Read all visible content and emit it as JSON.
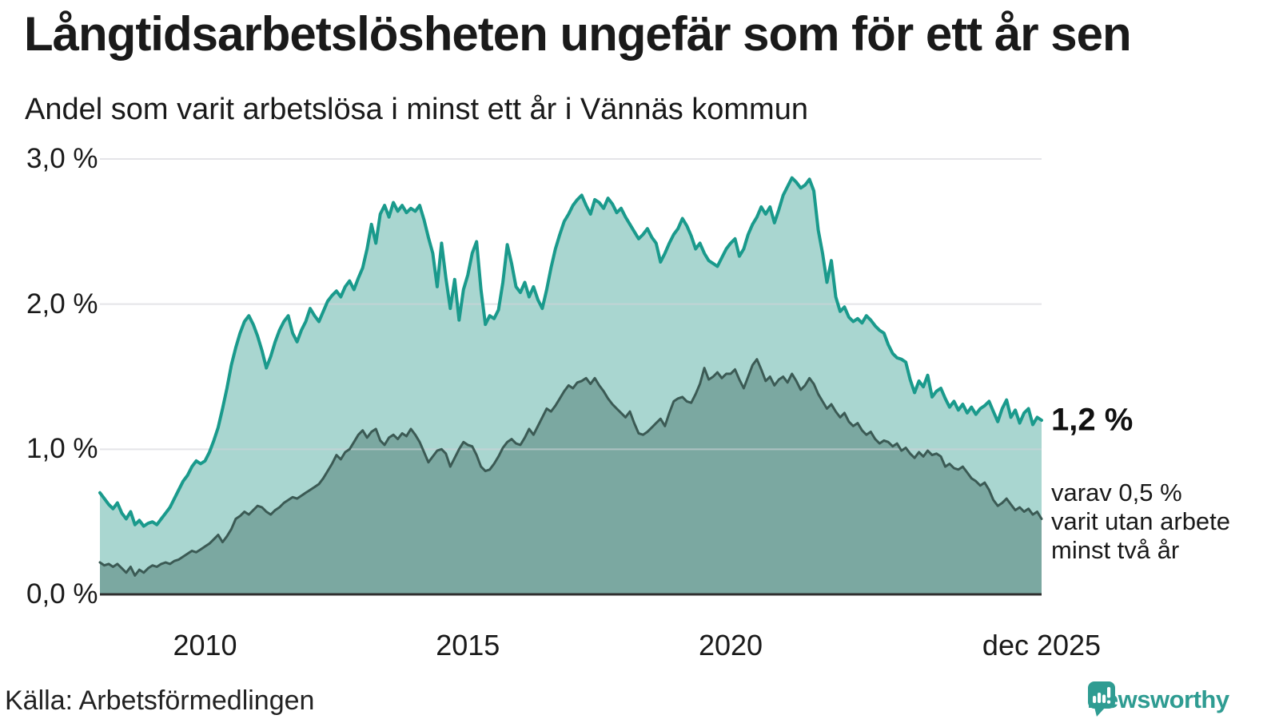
{
  "header": {
    "title": "Långtidsarbetslösheten ungefär som för ett år sen",
    "subtitle": "Andel som varit arbetslösa i minst ett år i Vännäs kommun"
  },
  "chart_data": {
    "type": "area",
    "title": "Långtidsarbetslösheten ungefär som för ett år sen",
    "subtitle": "Andel som varit arbetslösa i minst ett år i Vännäs kommun",
    "x_unit": "month",
    "x_start": "2008-01",
    "x_end": "2025-12",
    "ylim": [
      0,
      3.0
    ],
    "grid": true,
    "legend_position": "none",
    "y_ticks": [
      {
        "value": 3.0,
        "label": "3,0 %"
      },
      {
        "value": 2.0,
        "label": "2,0 %"
      },
      {
        "value": 1.0,
        "label": "1,0 %"
      },
      {
        "value": 0.0,
        "label": "0,0 %"
      }
    ],
    "x_ticks": [
      {
        "month_index": 24,
        "label": "2010"
      },
      {
        "month_index": 84,
        "label": "2015"
      },
      {
        "month_index": 144,
        "label": "2020"
      },
      {
        "month_index": 215,
        "label": "dec 2025"
      }
    ],
    "series": [
      {
        "name": "Arbetslösa minst ett år",
        "end_value_label": "1,2 %",
        "values": [
          0.7,
          0.66,
          0.62,
          0.59,
          0.63,
          0.56,
          0.52,
          0.57,
          0.48,
          0.51,
          0.47,
          0.49,
          0.5,
          0.48,
          0.52,
          0.56,
          0.6,
          0.66,
          0.72,
          0.78,
          0.82,
          0.88,
          0.92,
          0.9,
          0.92,
          0.98,
          1.06,
          1.15,
          1.28,
          1.42,
          1.58,
          1.7,
          1.8,
          1.88,
          1.92,
          1.86,
          1.78,
          1.68,
          1.56,
          1.64,
          1.74,
          1.82,
          1.88,
          1.92,
          1.8,
          1.74,
          1.82,
          1.88,
          1.97,
          1.92,
          1.88,
          1.95,
          2.02,
          2.06,
          2.09,
          2.05,
          2.12,
          2.16,
          2.1,
          2.18,
          2.25,
          2.38,
          2.55,
          2.42,
          2.62,
          2.68,
          2.6,
          2.7,
          2.64,
          2.68,
          2.63,
          2.66,
          2.64,
          2.68,
          2.58,
          2.46,
          2.35,
          2.12,
          2.42,
          2.18,
          1.97,
          2.17,
          1.89,
          2.1,
          2.2,
          2.35,
          2.43,
          2.1,
          1.86,
          1.92,
          1.9,
          1.96,
          2.15,
          2.41,
          2.28,
          2.12,
          2.08,
          2.15,
          2.05,
          2.12,
          2.03,
          1.97,
          2.1,
          2.25,
          2.38,
          2.48,
          2.57,
          2.62,
          2.68,
          2.72,
          2.75,
          2.68,
          2.62,
          2.72,
          2.7,
          2.66,
          2.73,
          2.69,
          2.63,
          2.66,
          2.6,
          2.55,
          2.5,
          2.45,
          2.48,
          2.52,
          2.46,
          2.42,
          2.29,
          2.35,
          2.42,
          2.48,
          2.52,
          2.59,
          2.54,
          2.47,
          2.38,
          2.42,
          2.35,
          2.3,
          2.28,
          2.26,
          2.32,
          2.38,
          2.42,
          2.45,
          2.33,
          2.38,
          2.48,
          2.55,
          2.6,
          2.67,
          2.62,
          2.67,
          2.56,
          2.65,
          2.75,
          2.81,
          2.87,
          2.84,
          2.8,
          2.82,
          2.86,
          2.78,
          2.51,
          2.35,
          2.15,
          2.3,
          2.05,
          1.95,
          1.98,
          1.91,
          1.88,
          1.9,
          1.87,
          1.92,
          1.89,
          1.85,
          1.82,
          1.8,
          1.72,
          1.66,
          1.63,
          1.62,
          1.6,
          1.48,
          1.39,
          1.47,
          1.43,
          1.51,
          1.36,
          1.4,
          1.42,
          1.35,
          1.29,
          1.33,
          1.27,
          1.31,
          1.25,
          1.29,
          1.24,
          1.28,
          1.3,
          1.33,
          1.26,
          1.19,
          1.28,
          1.34,
          1.22,
          1.27,
          1.18,
          1.25,
          1.28,
          1.17,
          1.22,
          1.2
        ]
      },
      {
        "name": "varav utan arbete minst två år",
        "end_value_label": "0,5 %",
        "values": [
          0.22,
          0.2,
          0.21,
          0.19,
          0.21,
          0.18,
          0.15,
          0.19,
          0.13,
          0.17,
          0.15,
          0.18,
          0.2,
          0.19,
          0.21,
          0.22,
          0.21,
          0.23,
          0.24,
          0.26,
          0.28,
          0.3,
          0.29,
          0.31,
          0.33,
          0.35,
          0.38,
          0.41,
          0.36,
          0.4,
          0.45,
          0.52,
          0.54,
          0.57,
          0.55,
          0.58,
          0.61,
          0.6,
          0.57,
          0.55,
          0.58,
          0.6,
          0.63,
          0.65,
          0.67,
          0.66,
          0.68,
          0.7,
          0.72,
          0.74,
          0.76,
          0.8,
          0.85,
          0.9,
          0.96,
          0.93,
          0.98,
          1.0,
          1.05,
          1.1,
          1.13,
          1.08,
          1.12,
          1.14,
          1.06,
          1.03,
          1.08,
          1.1,
          1.07,
          1.11,
          1.09,
          1.14,
          1.1,
          1.05,
          0.98,
          0.91,
          0.95,
          0.99,
          1.0,
          0.97,
          0.88,
          0.94,
          1.0,
          1.05,
          1.03,
          1.02,
          0.96,
          0.88,
          0.85,
          0.86,
          0.9,
          0.95,
          1.01,
          1.05,
          1.07,
          1.04,
          1.03,
          1.08,
          1.14,
          1.1,
          1.16,
          1.22,
          1.28,
          1.26,
          1.3,
          1.35,
          1.4,
          1.44,
          1.42,
          1.46,
          1.47,
          1.49,
          1.45,
          1.49,
          1.44,
          1.4,
          1.35,
          1.31,
          1.28,
          1.25,
          1.22,
          1.26,
          1.18,
          1.11,
          1.1,
          1.12,
          1.15,
          1.18,
          1.21,
          1.16,
          1.25,
          1.33,
          1.35,
          1.36,
          1.33,
          1.32,
          1.38,
          1.45,
          1.56,
          1.48,
          1.5,
          1.53,
          1.49,
          1.52,
          1.52,
          1.55,
          1.48,
          1.42,
          1.5,
          1.58,
          1.62,
          1.55,
          1.47,
          1.5,
          1.44,
          1.48,
          1.5,
          1.46,
          1.52,
          1.47,
          1.41,
          1.44,
          1.49,
          1.45,
          1.38,
          1.33,
          1.28,
          1.31,
          1.26,
          1.22,
          1.25,
          1.19,
          1.16,
          1.18,
          1.13,
          1.1,
          1.12,
          1.07,
          1.04,
          1.06,
          1.05,
          1.02,
          1.04,
          0.99,
          1.01,
          0.97,
          0.94,
          0.98,
          0.95,
          0.99,
          0.96,
          0.97,
          0.95,
          0.88,
          0.9,
          0.87,
          0.86,
          0.88,
          0.84,
          0.8,
          0.78,
          0.75,
          0.77,
          0.72,
          0.65,
          0.61,
          0.63,
          0.66,
          0.62,
          0.58,
          0.6,
          0.57,
          0.59,
          0.55,
          0.57,
          0.52
        ]
      }
    ],
    "annotations": {
      "end_label": "1,2 %",
      "note_lines": [
        "varav 0,5 %",
        "varit utan arbete",
        "minst två år"
      ]
    },
    "colors": {
      "line_total": "#1a9a8c",
      "fill_total": "#a9d6d0",
      "line_two_year": "#3b5a54",
      "fill_two_year": "#7ba8a1",
      "grid": "#d2d2d8",
      "axis": "#2f2f2f",
      "brand": "#2f9c92"
    }
  },
  "footer": {
    "source": "Källa: Arbetsförmedlingen",
    "logo_text": "Newsworthy"
  }
}
